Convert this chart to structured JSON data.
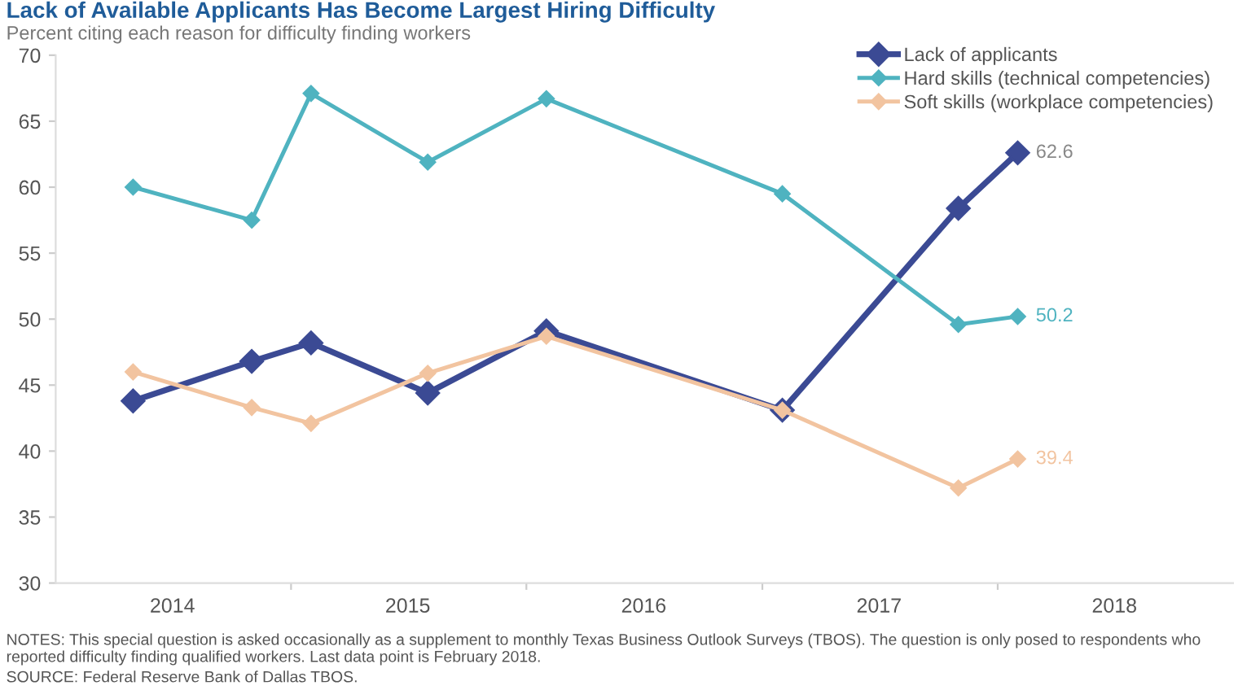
{
  "chart_data": {
    "type": "line",
    "title": "Lack of Available Applicants Has Become Largest Hiring Difficulty",
    "subtitle": "Percent citing each reason for difficulty finding workers",
    "x": [
      "2014-05",
      "2014-11",
      "2015-02",
      "2015-08",
      "2016-02",
      "2017-02",
      "2017-11",
      "2018-02"
    ],
    "series": [
      {
        "name": "Lack of applicants",
        "color": "#3b4a94",
        "values": [
          43.8,
          46.8,
          48.2,
          44.4,
          49.1,
          43.1,
          58.4,
          62.6
        ],
        "value_labels": [
          null,
          null,
          null,
          null,
          null,
          null,
          null,
          "62.6"
        ]
      },
      {
        "name": "Hard skills (technical competencies)",
        "color": "#4fb3c0",
        "values": [
          60.0,
          57.5,
          67.1,
          61.9,
          66.7,
          59.5,
          49.6,
          50.2
        ],
        "value_labels": [
          null,
          null,
          null,
          null,
          null,
          null,
          null,
          "50.2"
        ]
      },
      {
        "name": "Soft skills (workplace competencies)",
        "color": "#f2c4a0",
        "values": [
          46.0,
          43.3,
          42.1,
          45.9,
          48.7,
          43.1,
          37.2,
          39.4
        ],
        "value_labels": [
          null,
          null,
          null,
          null,
          null,
          null,
          null,
          "39.4"
        ]
      }
    ],
    "xlim": [
      "2014",
      "2019"
    ],
    "xticks": [
      {
        "value": "2014-07",
        "label": "2014"
      },
      {
        "value": "2015-07",
        "label": "2015"
      },
      {
        "value": "2016-07",
        "label": "2016"
      },
      {
        "value": "2017-07",
        "label": "2017"
      },
      {
        "value": "2018-07",
        "label": "2018"
      },
      {
        "value": "2015",
        "label": null
      },
      {
        "value": "2016",
        "label": null
      },
      {
        "value": "2017",
        "label": null
      },
      {
        "value": "2018",
        "label": null
      }
    ],
    "ylim": [
      30,
      70
    ],
    "yticks": [
      30,
      35,
      40,
      45,
      50,
      55,
      60,
      65,
      70
    ],
    "grid": false,
    "legend": "top right",
    "marker": "diamond",
    "line_style": "solid",
    "annotations": [
      "NOTES: This special question is asked occasionally as a supplement to monthly Texas Business Outlook Surveys (TBOS). The question is only posed to respondents who reported difficulty finding qualified workers. Last data point is February 2018.",
      "SOURCE: Federal Reserve Bank of Dallas TBOS."
    ]
  }
}
